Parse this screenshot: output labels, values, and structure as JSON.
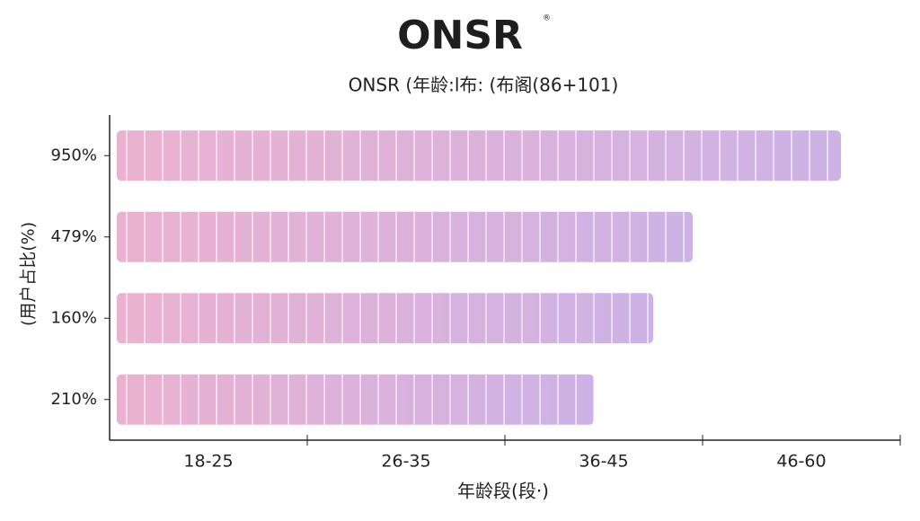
{
  "chart_data": {
    "type": "hbar",
    "title": "ONSR",
    "title_mark": "®",
    "subtitle": "ONSR (年龄:l布: (布阁(86+101)",
    "y_label": "(用户占比(%)",
    "x_label": "年龄段(段·)",
    "categories": [
      "950%",
      "479%",
      "160%",
      "210%"
    ],
    "x_categories": [
      "18-25",
      "26-35",
      "36-45",
      "46-60"
    ],
    "values": [
      3.7,
      2.95,
      2.75,
      2.45
    ],
    "xlim": [
      0,
      4
    ],
    "colors": [
      "#e9a9cb",
      "#c7a9e3"
    ]
  }
}
